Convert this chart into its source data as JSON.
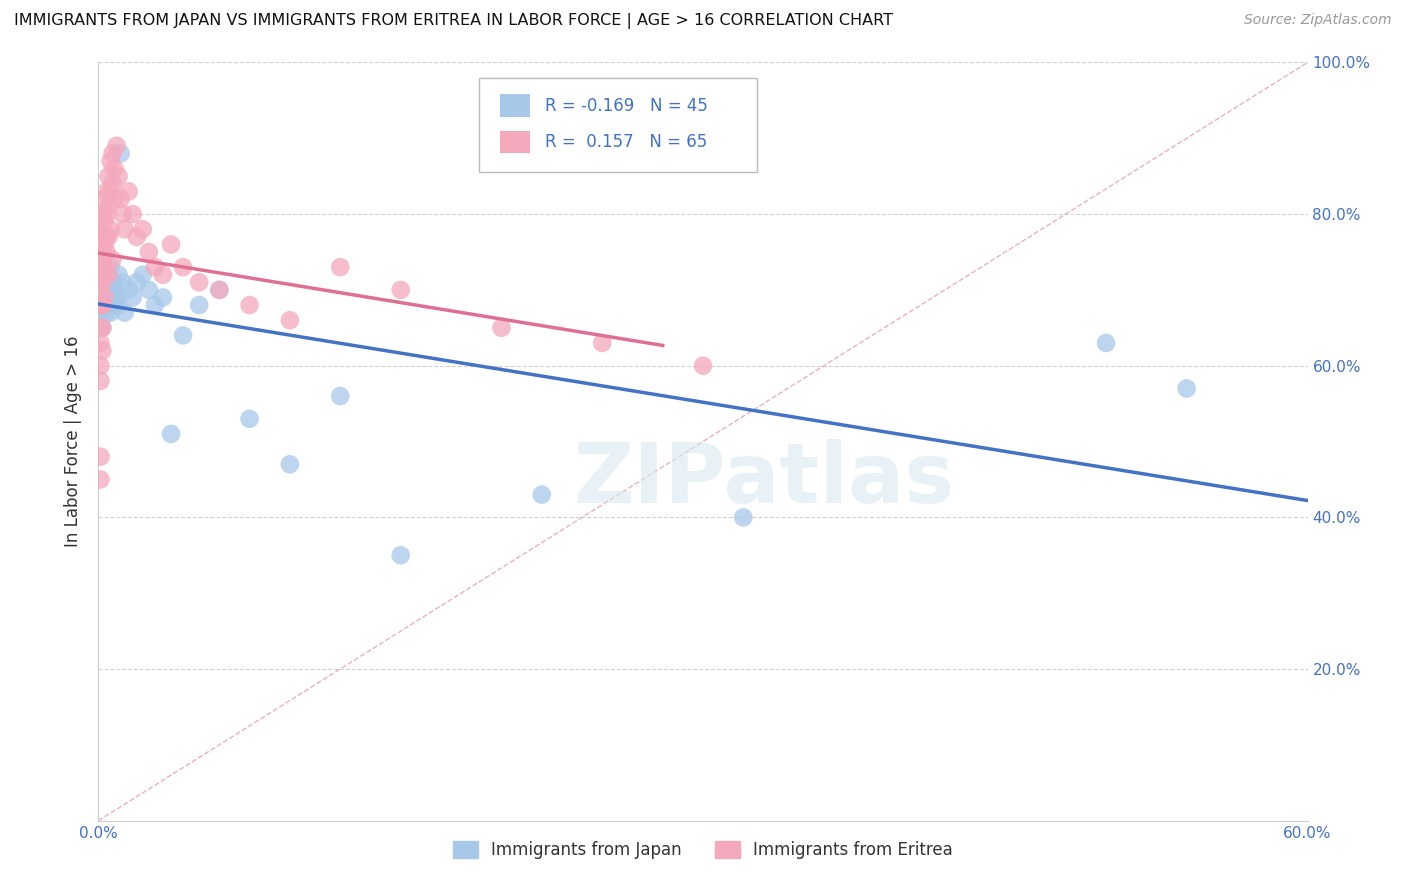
{
  "title": "IMMIGRANTS FROM JAPAN VS IMMIGRANTS FROM ERITREA IN LABOR FORCE | AGE > 16 CORRELATION CHART",
  "source": "Source: ZipAtlas.com",
  "ylabel": "In Labor Force | Age > 16",
  "xlim": [
    0.0,
    0.6
  ],
  "ylim": [
    0.0,
    1.0
  ],
  "xticks": [
    0.0,
    0.1,
    0.2,
    0.3,
    0.4,
    0.5,
    0.6
  ],
  "xticklabels": [
    "0.0%",
    "",
    "",
    "",
    "",
    "",
    "60.0%"
  ],
  "yticks": [
    0.0,
    0.2,
    0.4,
    0.6,
    0.8,
    1.0
  ],
  "yticklabels_right": [
    "",
    "20.0%",
    "40.0%",
    "60.0%",
    "80.0%",
    "100.0%"
  ],
  "japan_color": "#a8c8ea",
  "eritrea_color": "#f4a8bc",
  "japan_line_color": "#4472c4",
  "eritrea_line_color": "#e07090",
  "japan_R": -0.169,
  "japan_N": 45,
  "eritrea_R": 0.157,
  "eritrea_N": 65,
  "watermark": "ZIPatlas",
  "background_color": "#ffffff",
  "grid_color": "#cccccc",
  "japan_x": [
    0.001,
    0.001,
    0.001,
    0.002,
    0.002,
    0.002,
    0.002,
    0.003,
    0.003,
    0.003,
    0.004,
    0.004,
    0.005,
    0.005,
    0.006,
    0.006,
    0.007,
    0.007,
    0.008,
    0.008,
    0.009,
    0.01,
    0.01,
    0.011,
    0.012,
    0.013,
    0.015,
    0.017,
    0.019,
    0.022,
    0.025,
    0.028,
    0.032,
    0.036,
    0.042,
    0.05,
    0.06,
    0.075,
    0.095,
    0.12,
    0.15,
    0.22,
    0.32,
    0.5,
    0.54
  ],
  "japan_y": [
    0.73,
    0.7,
    0.67,
    0.72,
    0.69,
    0.68,
    0.65,
    0.71,
    0.7,
    0.68,
    0.69,
    0.67,
    0.72,
    0.68,
    0.73,
    0.67,
    0.71,
    0.69,
    0.7,
    0.68,
    0.69,
    0.72,
    0.68,
    0.88,
    0.71,
    0.67,
    0.7,
    0.69,
    0.71,
    0.72,
    0.7,
    0.68,
    0.69,
    0.51,
    0.64,
    0.68,
    0.7,
    0.53,
    0.47,
    0.56,
    0.35,
    0.43,
    0.4,
    0.63,
    0.57
  ],
  "eritrea_x": [
    0.001,
    0.001,
    0.001,
    0.001,
    0.001,
    0.001,
    0.001,
    0.001,
    0.001,
    0.002,
    0.002,
    0.002,
    0.002,
    0.002,
    0.002,
    0.002,
    0.003,
    0.003,
    0.003,
    0.003,
    0.004,
    0.004,
    0.004,
    0.005,
    0.005,
    0.005,
    0.006,
    0.006,
    0.007,
    0.007,
    0.008,
    0.008,
    0.009,
    0.01,
    0.011,
    0.012,
    0.013,
    0.015,
    0.017,
    0.019,
    0.022,
    0.025,
    0.028,
    0.032,
    0.036,
    0.042,
    0.05,
    0.06,
    0.075,
    0.095,
    0.12,
    0.15,
    0.2,
    0.25,
    0.3,
    0.001,
    0.001,
    0.002,
    0.002,
    0.003,
    0.003,
    0.004,
    0.005,
    0.006,
    0.007
  ],
  "eritrea_y": [
    0.78,
    0.75,
    0.73,
    0.7,
    0.68,
    0.65,
    0.63,
    0.6,
    0.58,
    0.8,
    0.77,
    0.74,
    0.71,
    0.68,
    0.65,
    0.62,
    0.82,
    0.79,
    0.76,
    0.72,
    0.83,
    0.8,
    0.77,
    0.85,
    0.81,
    0.77,
    0.87,
    0.83,
    0.88,
    0.84,
    0.86,
    0.82,
    0.89,
    0.85,
    0.82,
    0.8,
    0.78,
    0.83,
    0.8,
    0.77,
    0.78,
    0.75,
    0.73,
    0.72,
    0.76,
    0.73,
    0.71,
    0.7,
    0.68,
    0.66,
    0.73,
    0.7,
    0.65,
    0.63,
    0.6,
    0.48,
    0.45,
    0.72,
    0.68,
    0.73,
    0.69,
    0.75,
    0.72,
    0.78,
    0.74
  ]
}
